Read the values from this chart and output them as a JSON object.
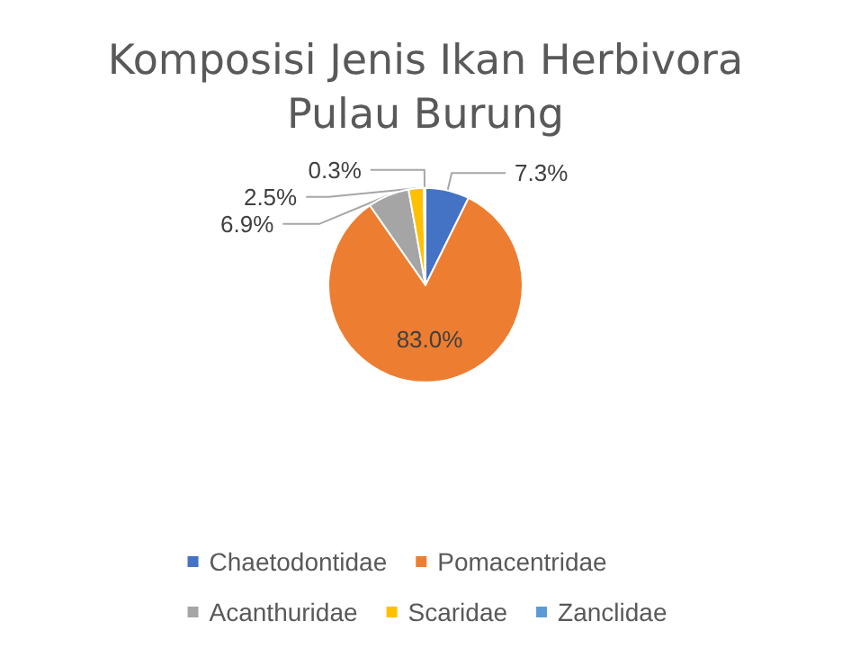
{
  "chart_data": {
    "type": "pie",
    "title": "Komposisi Jenis Ikan Herbivora\nPulau Burung",
    "categories": [
      "Chaetodontidae",
      "Pomacentridae",
      "Acanthuridae",
      "Scaridae",
      "Zanclidae"
    ],
    "values": [
      7.3,
      83.0,
      6.9,
      2.5,
      0.3
    ],
    "value_labels": [
      "7.3%",
      "83.0%",
      "6.9%",
      "2.5%",
      "0.3%"
    ],
    "colors": [
      "#4472c4",
      "#ed7d31",
      "#a5a5a5",
      "#ffc000",
      "#5b9bd5"
    ],
    "legend": "bottom"
  }
}
